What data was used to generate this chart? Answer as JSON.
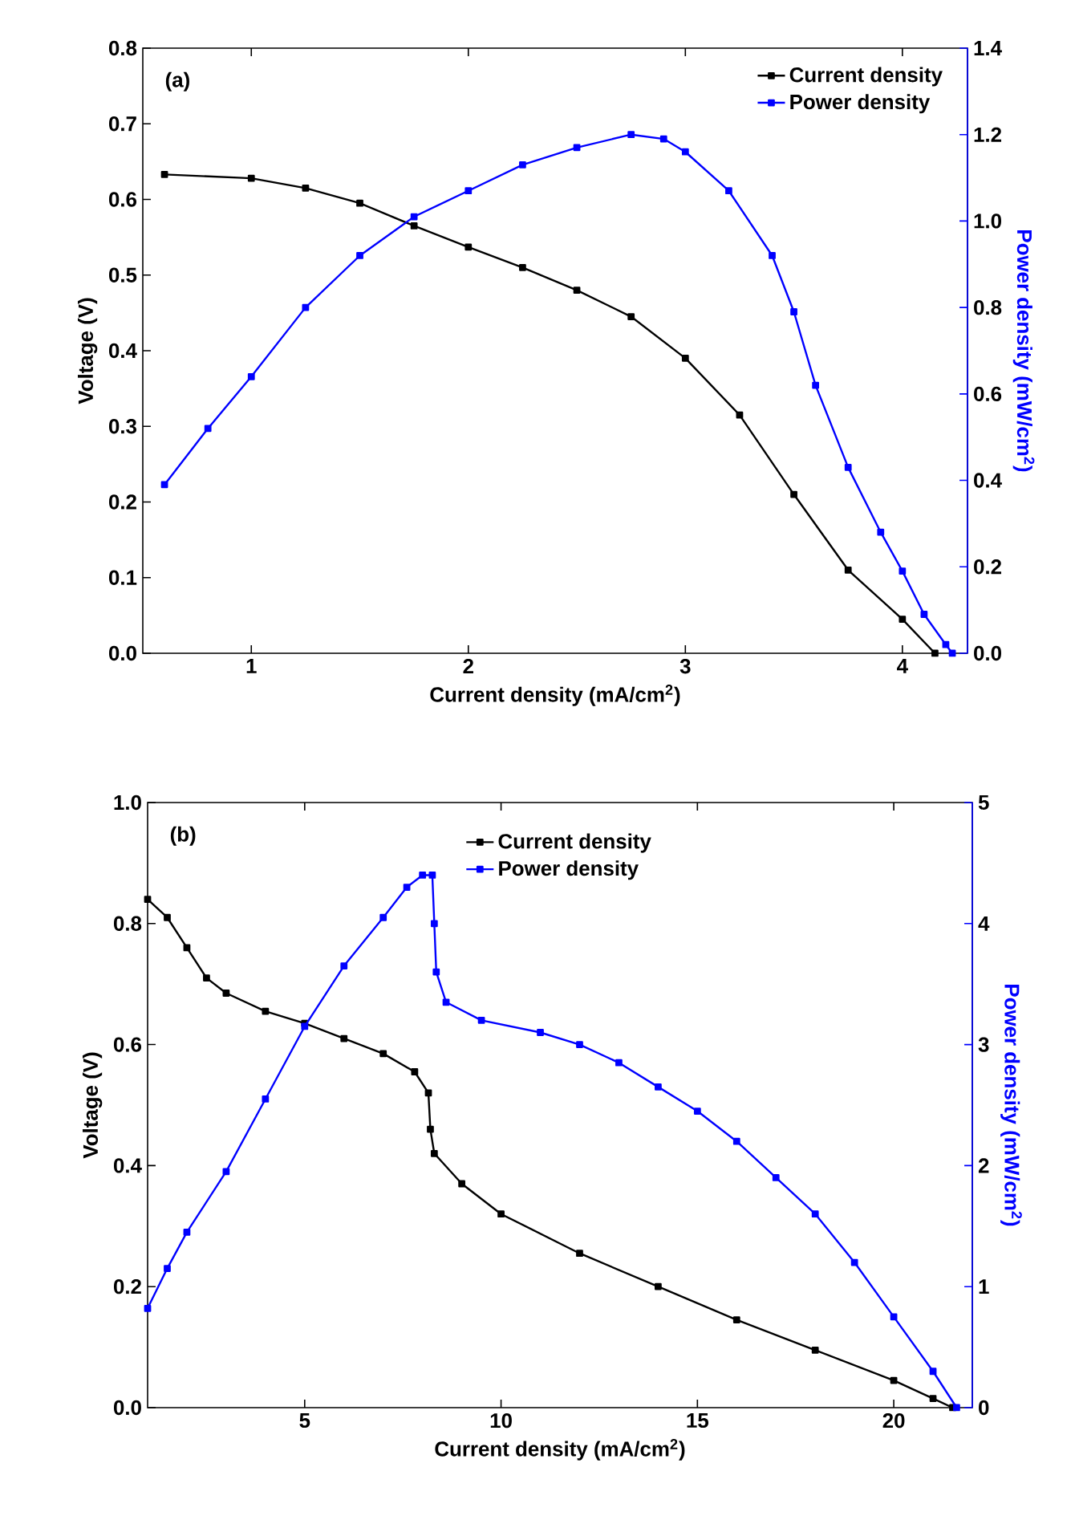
{
  "chart_data": [
    {
      "type": "line",
      "xlabel": "Current density (mA/cm$^{2}$)",
      "ylabel": "Voltage (V)",
      "y2label": "Power density (mW/cm$^{2}$)",
      "annotations": [
        "(a)"
      ],
      "xlim": [
        0.5,
        4.3
      ],
      "xticks": [
        1,
        2,
        3,
        4
      ],
      "ylim": [
        0,
        0.8
      ],
      "yticks": [
        "0.0",
        0.1,
        0.2,
        0.3,
        0.4,
        0.5,
        0.6,
        0.7,
        0.8
      ],
      "y2lim": [
        0,
        1.4
      ],
      "y2ticks": [
        "0.0",
        0.2,
        0.4,
        0.6,
        0.8,
        "1.0",
        1.2,
        1.4
      ],
      "legend": "top right",
      "marker": "square",
      "line_style": "solid",
      "series": [
        {
          "name": "Current density",
          "color": "#000000",
          "x": [
            0.6,
            1.0,
            1.25,
            1.5,
            1.75,
            2.0,
            2.25,
            2.5,
            2.75,
            3.0,
            3.25,
            3.5,
            3.75,
            4.0,
            4.15
          ],
          "values": [
            0.633,
            0.628,
            0.615,
            0.595,
            0.565,
            0.537,
            0.51,
            0.48,
            0.445,
            0.39,
            0.315,
            0.21,
            0.11,
            0.045,
            0.0
          ]
        },
        {
          "name": "Power density",
          "color": "#0000ff",
          "axis": "y2",
          "x": [
            0.6,
            0.8,
            1.0,
            1.25,
            1.5,
            1.75,
            2.0,
            2.25,
            2.5,
            2.75,
            2.9,
            3.0,
            3.2,
            3.4,
            3.5,
            3.6,
            3.75,
            3.9,
            4.0,
            4.1,
            4.2,
            4.23
          ],
          "values": [
            0.39,
            0.52,
            0.64,
            0.8,
            0.92,
            1.01,
            1.07,
            1.13,
            1.17,
            1.2,
            1.19,
            1.16,
            1.07,
            0.92,
            0.79,
            0.62,
            0.43,
            0.28,
            0.19,
            0.09,
            0.02,
            0.0
          ]
        }
      ]
    },
    {
      "type": "line",
      "xlabel": "Current density (mA/cm$^{2}$)",
      "ylabel": "Voltage (V)",
      "y2label": "Power density (mW/cm$^{2}$)",
      "annotations": [
        "(b)"
      ],
      "xlim": [
        1,
        22
      ],
      "xticks": [
        5,
        10,
        15,
        20
      ],
      "ylim": [
        0,
        1.0
      ],
      "yticks": [
        "0.0",
        0.2,
        0.4,
        0.6,
        0.8,
        "1.0"
      ],
      "y2lim": [
        0,
        5
      ],
      "y2ticks": [
        0,
        1,
        2,
        3,
        4,
        5
      ],
      "legend": "top",
      "marker": "square",
      "line_style": "solid",
      "series": [
        {
          "name": "Current density",
          "color": "#000000",
          "x": [
            1.0,
            1.5,
            2,
            2.5,
            3,
            4,
            5,
            6,
            7,
            7.8,
            8.15,
            8.2,
            8.3,
            9,
            10,
            12,
            14,
            16,
            18,
            20,
            21,
            21.5
          ],
          "values": [
            0.84,
            0.81,
            0.76,
            0.71,
            0.685,
            0.655,
            0.635,
            0.61,
            0.585,
            0.555,
            0.52,
            0.46,
            0.42,
            0.37,
            0.32,
            0.255,
            0.2,
            0.145,
            0.095,
            0.045,
            0.015,
            0.0
          ]
        },
        {
          "name": "Power density",
          "color": "#0000ff",
          "axis": "y2",
          "x": [
            1.0,
            1.5,
            2,
            3,
            4,
            5,
            6,
            7,
            7.6,
            8.0,
            8.25,
            8.3,
            8.35,
            8.6,
            9.5,
            11,
            12,
            13,
            14,
            15,
            16,
            17,
            18,
            19,
            20,
            21,
            21.6
          ],
          "values": [
            0.82,
            1.15,
            1.45,
            1.95,
            2.55,
            3.15,
            3.65,
            4.05,
            4.3,
            4.4,
            4.4,
            4.0,
            3.6,
            3.35,
            3.2,
            3.1,
            3.0,
            2.85,
            2.65,
            2.45,
            2.2,
            1.9,
            1.6,
            1.2,
            0.75,
            0.3,
            0.0
          ]
        }
      ]
    }
  ]
}
